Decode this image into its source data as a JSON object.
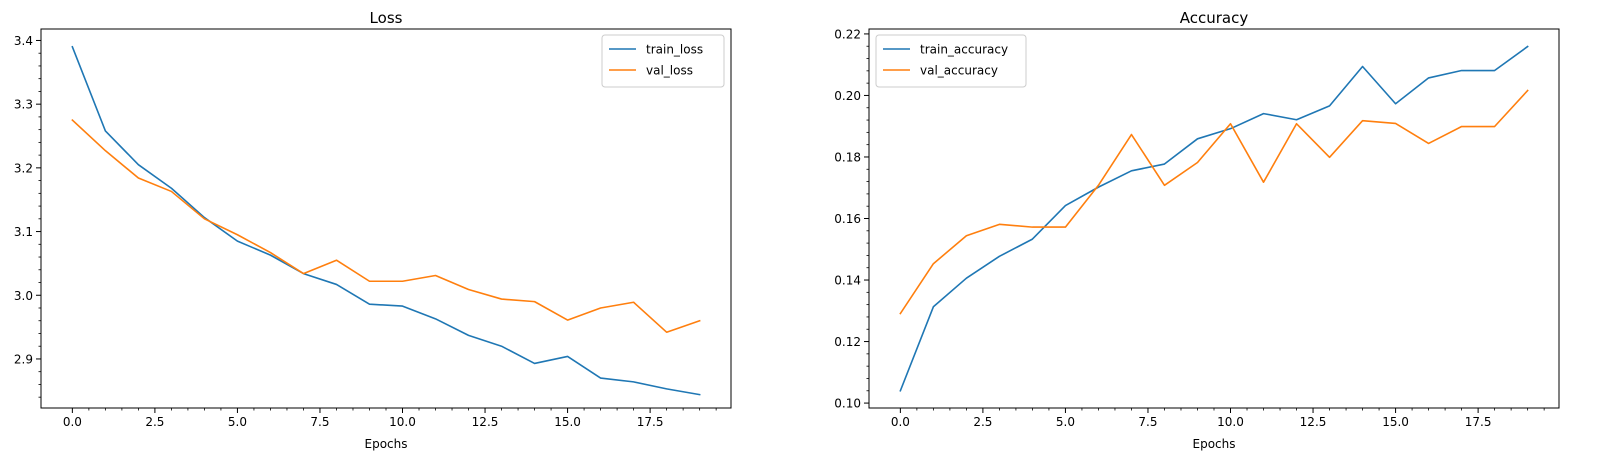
{
  "chart_data": [
    {
      "type": "line",
      "title": "Loss",
      "xlabel": "Epochs",
      "ylabel": "",
      "x": [
        0,
        1,
        2,
        3,
        4,
        5,
        6,
        7,
        8,
        9,
        10,
        11,
        12,
        13,
        14,
        15,
        16,
        17,
        18,
        19
      ],
      "xlim": [
        -0.95,
        19.95
      ],
      "ylim": [
        2.823,
        3.418
      ],
      "xticks": [
        0.0,
        2.5,
        5.0,
        7.5,
        10.0,
        12.5,
        15.0,
        17.5
      ],
      "xtick_labels": [
        "0.0",
        "2.5",
        "5.0",
        "7.5",
        "10.0",
        "12.5",
        "15.0",
        "17.5"
      ],
      "yticks": [
        2.9,
        3.0,
        3.1,
        3.2,
        3.3,
        3.4
      ],
      "ytick_labels": [
        "2.9",
        "3.0",
        "3.1",
        "3.2",
        "3.3",
        "3.4"
      ],
      "minor_ticks": true,
      "legend": "top-right",
      "series": [
        {
          "name": "train_loss",
          "color": "#1f77b4",
          "values": [
            3.39,
            3.258,
            3.205,
            3.168,
            3.122,
            3.085,
            3.063,
            3.034,
            3.017,
            2.986,
            2.983,
            2.963,
            2.937,
            2.92,
            2.893,
            2.904,
            2.87,
            2.864,
            2.853,
            2.844
          ]
        },
        {
          "name": "val_loss",
          "color": "#ff7f0e",
          "values": [
            3.275,
            3.227,
            3.184,
            3.163,
            3.12,
            3.095,
            3.067,
            3.034,
            3.055,
            3.022,
            3.022,
            3.031,
            3.009,
            2.994,
            2.99,
            2.961,
            2.98,
            2.989,
            2.942,
            2.96
          ]
        }
      ]
    },
    {
      "type": "line",
      "title": "Accuracy",
      "xlabel": "Epochs",
      "ylabel": "",
      "x": [
        0,
        1,
        2,
        3,
        4,
        5,
        6,
        7,
        8,
        9,
        10,
        11,
        12,
        13,
        14,
        15,
        16,
        17,
        18,
        19
      ],
      "xlim": [
        -0.95,
        19.95
      ],
      "ylim": [
        0.0984,
        0.2216
      ],
      "xticks": [
        0.0,
        2.5,
        5.0,
        7.5,
        10.0,
        12.5,
        15.0,
        17.5
      ],
      "xtick_labels": [
        "0.0",
        "2.5",
        "5.0",
        "7.5",
        "10.0",
        "12.5",
        "15.0",
        "17.5"
      ],
      "yticks": [
        0.1,
        0.12,
        0.14,
        0.16,
        0.18,
        0.2,
        0.22
      ],
      "ytick_labels": [
        "0.10",
        "0.12",
        "0.14",
        "0.16",
        "0.18",
        "0.20",
        "0.22"
      ],
      "minor_ticks": true,
      "legend": "top-left",
      "series": [
        {
          "name": "train_accuracy",
          "color": "#1f77b4",
          "values": [
            0.104,
            0.1313,
            0.1406,
            0.1477,
            0.1533,
            0.1642,
            0.1702,
            0.1755,
            0.1777,
            0.1859,
            0.1892,
            0.1941,
            0.1921,
            0.1966,
            0.2094,
            0.1973,
            0.2057,
            0.2081,
            0.2081,
            0.2159
          ]
        },
        {
          "name": "val_accuracy",
          "color": "#ff7f0e",
          "values": [
            0.1291,
            0.1453,
            0.1544,
            0.1581,
            0.1572,
            0.1572,
            0.1708,
            0.1873,
            0.1708,
            0.1782,
            0.1908,
            0.1718,
            0.1908,
            0.1799,
            0.1918,
            0.1909,
            0.1844,
            0.1899,
            0.1899,
            0.2016
          ]
        }
      ]
    }
  ]
}
